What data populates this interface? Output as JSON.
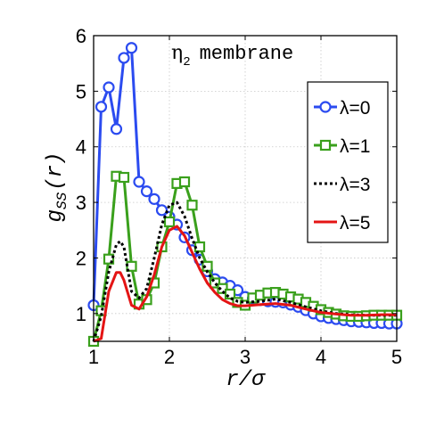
{
  "chart_data": {
    "type": "line",
    "title": "η₂ membrane",
    "title_main": "η",
    "title_sub": "2",
    "title_rest": "membrane",
    "xlabel": "r/σ",
    "ylabel": "g_SS(r)",
    "ylabel_main": "g",
    "ylabel_sub": "SS",
    "ylabel_rest": "(r)",
    "xlim": [
      1,
      5
    ],
    "ylim": [
      0.5,
      6
    ],
    "xticks": [
      1,
      2,
      3,
      4,
      5
    ],
    "yticks": [
      1,
      2,
      3,
      4,
      5,
      6
    ],
    "grid": true,
    "legend_position": "right",
    "series": [
      {
        "name": "λ=0",
        "color": "#2b4bf0",
        "style": "solid",
        "marker": "circle",
        "x": [
          1.0,
          1.1,
          1.2,
          1.3,
          1.4,
          1.5,
          1.6,
          1.7,
          1.8,
          1.9,
          2.0,
          2.1,
          2.2,
          2.3,
          2.4,
          2.5,
          2.6,
          2.7,
          2.8,
          2.9,
          3.0,
          3.1,
          3.2,
          3.3,
          3.4,
          3.5,
          3.6,
          3.7,
          3.8,
          3.9,
          4.0,
          4.1,
          4.2,
          4.3,
          4.4,
          4.5,
          4.6,
          4.7,
          4.8,
          4.9,
          5.0
        ],
        "y": [
          1.15,
          4.72,
          5.07,
          4.32,
          5.6,
          5.78,
          3.37,
          3.2,
          3.06,
          2.86,
          2.74,
          2.6,
          2.37,
          2.14,
          1.97,
          1.76,
          1.62,
          1.56,
          1.5,
          1.42,
          1.3,
          1.27,
          1.24,
          1.22,
          1.21,
          1.2,
          1.16,
          1.12,
          1.06,
          1.0,
          0.95,
          0.92,
          0.9,
          0.88,
          0.86,
          0.85,
          0.84,
          0.83,
          0.83,
          0.82,
          0.82
        ]
      },
      {
        "name": "λ=1",
        "color": "#3aa01c",
        "style": "solid",
        "marker": "square",
        "x": [
          1.0,
          1.1,
          1.2,
          1.3,
          1.4,
          1.5,
          1.6,
          1.7,
          1.8,
          1.9,
          2.0,
          2.1,
          2.2,
          2.3,
          2.4,
          2.5,
          2.6,
          2.7,
          2.8,
          2.9,
          3.0,
          3.1,
          3.2,
          3.3,
          3.4,
          3.5,
          3.6,
          3.7,
          3.8,
          3.9,
          4.0,
          4.1,
          4.2,
          4.3,
          4.4,
          4.5,
          4.6,
          4.7,
          4.8,
          4.9,
          5.0
        ],
        "y": [
          0.5,
          1.05,
          1.98,
          3.47,
          3.45,
          1.85,
          1.17,
          1.25,
          1.55,
          2.2,
          2.65,
          3.34,
          3.37,
          2.95,
          2.2,
          1.85,
          1.55,
          1.45,
          1.35,
          1.2,
          1.15,
          1.28,
          1.33,
          1.37,
          1.38,
          1.35,
          1.3,
          1.26,
          1.2,
          1.13,
          1.07,
          1.02,
          0.99,
          0.96,
          0.95,
          0.95,
          0.96,
          0.97,
          0.97,
          0.97,
          0.97
        ]
      },
      {
        "name": "λ=3",
        "color": "#000000",
        "style": "dotted",
        "marker": "none",
        "x": [
          1.0,
          1.1,
          1.2,
          1.3,
          1.35,
          1.4,
          1.5,
          1.6,
          1.7,
          1.8,
          1.9,
          2.0,
          2.1,
          2.2,
          2.3,
          2.4,
          2.5,
          2.6,
          2.7,
          2.8,
          2.9,
          3.0,
          3.2,
          3.4,
          3.6,
          3.8,
          4.0,
          4.2,
          4.4,
          4.6,
          4.8,
          5.0
        ],
        "y": [
          0.5,
          0.95,
          1.75,
          2.24,
          2.3,
          2.2,
          1.4,
          1.28,
          1.45,
          2.0,
          2.6,
          2.95,
          3.0,
          2.75,
          2.35,
          2.0,
          1.75,
          1.55,
          1.4,
          1.28,
          1.22,
          1.2,
          1.22,
          1.26,
          1.2,
          1.12,
          1.05,
          1.0,
          0.98,
          0.97,
          0.97,
          0.97
        ]
      },
      {
        "name": "λ=5",
        "color": "#e41414",
        "style": "solid",
        "marker": "none",
        "x": [
          1.0,
          1.1,
          1.2,
          1.3,
          1.35,
          1.4,
          1.5,
          1.6,
          1.7,
          1.8,
          1.9,
          2.0,
          2.1,
          2.2,
          2.3,
          2.4,
          2.5,
          2.6,
          2.7,
          2.8,
          2.9,
          3.0,
          3.2,
          3.4,
          3.6,
          3.8,
          4.0,
          4.2,
          4.4,
          4.6,
          4.8,
          5.0
        ],
        "y": [
          0.5,
          0.55,
          1.4,
          1.74,
          1.74,
          1.6,
          1.15,
          1.08,
          1.3,
          1.7,
          2.2,
          2.5,
          2.57,
          2.4,
          2.1,
          1.8,
          1.55,
          1.38,
          1.25,
          1.18,
          1.14,
          1.14,
          1.16,
          1.18,
          1.15,
          1.08,
          1.02,
          0.99,
          0.97,
          0.97,
          0.98,
          0.98
        ]
      }
    ]
  }
}
